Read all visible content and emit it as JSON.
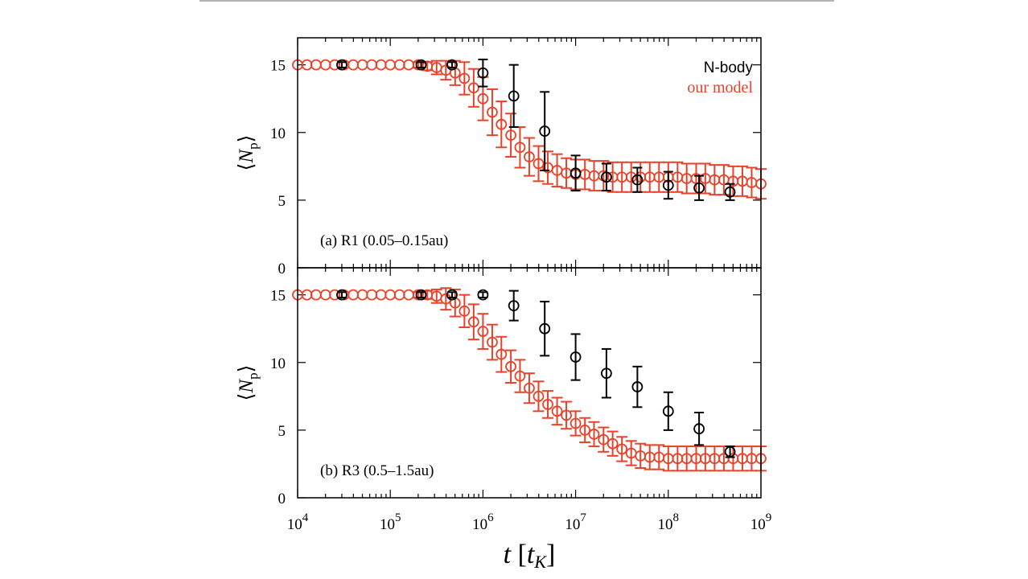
{
  "colors": {
    "nbody": "#000000",
    "model": "#e8432a",
    "frame": "#000000",
    "topline": "#9a9a9a"
  },
  "legend": {
    "nbody_label": "N-body",
    "model_label": "our model"
  },
  "xaxis": {
    "label_var": "t",
    "label_unit_open": "[",
    "label_unit_var": "t",
    "label_unit_sub": "K",
    "label_unit_close": "]",
    "ticks": [
      {
        "base": "10",
        "exp": "4"
      },
      {
        "base": "10",
        "exp": "5"
      },
      {
        "base": "10",
        "exp": "6"
      },
      {
        "base": "10",
        "exp": "7"
      },
      {
        "base": "10",
        "exp": "8"
      },
      {
        "base": "10",
        "exp": "9"
      }
    ]
  },
  "yaxis": {
    "label_open": "⟨",
    "label_var": "N",
    "label_sub": "p",
    "label_close": "⟩",
    "ticks": [
      "0",
      "5",
      "10",
      "15"
    ]
  },
  "chart_data": [
    {
      "type": "scatter",
      "panel_label": "(a) R1 (0.05–0.15au)",
      "xscale": "log",
      "xlim": [
        10000,
        1000000000
      ],
      "ylim": [
        0,
        17
      ],
      "series": [
        {
          "name": "N-body",
          "x": [
            30000,
            215000,
            464000,
            1000000,
            2150000,
            4640000,
            10000000,
            21500000,
            46400000,
            100000000,
            215000000,
            464000000
          ],
          "y": [
            15.0,
            15.0,
            15.0,
            14.4,
            12.7,
            10.1,
            7.0,
            6.7,
            6.5,
            6.1,
            5.9,
            5.6
          ],
          "yerr": [
            0.2,
            0.2,
            0.2,
            1.0,
            2.3,
            2.9,
            1.3,
            1.0,
            0.9,
            1.0,
            0.9,
            0.6
          ]
        },
        {
          "name": "our model",
          "x": [
            10000,
            12600,
            15800,
            20000,
            25100,
            31600,
            39800,
            50100,
            63100,
            79400,
            100000,
            126000,
            158000,
            200000,
            251000,
            316000,
            398000,
            501000,
            631000,
            794000,
            1000000,
            1260000,
            1580000,
            2000000,
            2510000,
            3160000,
            3980000,
            5010000,
            6310000,
            7940000,
            10000000,
            12600000,
            15800000,
            20000000,
            25100000,
            31600000,
            39800000,
            50100000,
            63100000,
            79400000,
            100000000,
            126000000,
            158000000,
            200000000,
            251000000,
            316000000,
            398000000,
            501000000,
            631000000,
            794000000,
            1000000000
          ],
          "y": [
            15.0,
            15.0,
            15.0,
            15.0,
            15.0,
            15.0,
            15.0,
            15.0,
            15.0,
            15.0,
            15.0,
            15.0,
            15.0,
            15.0,
            14.9,
            14.8,
            14.6,
            14.4,
            14.0,
            13.3,
            12.5,
            11.5,
            10.6,
            9.8,
            8.9,
            8.2,
            7.7,
            7.4,
            7.2,
            7.0,
            6.9,
            6.9,
            6.8,
            6.8,
            6.7,
            6.7,
            6.7,
            6.7,
            6.7,
            6.7,
            6.7,
            6.7,
            6.6,
            6.6,
            6.6,
            6.5,
            6.5,
            6.4,
            6.4,
            6.3,
            6.2
          ],
          "yerr": [
            0,
            0,
            0,
            0,
            0,
            0,
            0,
            0,
            0,
            0,
            0,
            0,
            0,
            0.2,
            0.3,
            0.5,
            0.7,
            0.9,
            1.2,
            1.4,
            1.6,
            1.7,
            1.7,
            1.6,
            1.5,
            1.4,
            1.3,
            1.2,
            1.2,
            1.1,
            1.1,
            1.1,
            1.1,
            1.1,
            1.1,
            1.1,
            1.1,
            1.1,
            1.1,
            1.1,
            1.1,
            1.1,
            1.1,
            1.1,
            1.1,
            1.1,
            1.1,
            1.1,
            1.1,
            1.1,
            1.1
          ]
        }
      ]
    },
    {
      "type": "scatter",
      "panel_label": "(b) R3 (0.5–1.5au)",
      "xscale": "log",
      "xlim": [
        10000,
        1000000000
      ],
      "ylim": [
        0,
        17
      ],
      "series": [
        {
          "name": "N-body",
          "x": [
            30000,
            215000,
            464000,
            1000000,
            2150000,
            4640000,
            10000000,
            21500000,
            46400000,
            100000000,
            215000000,
            464000000
          ],
          "y": [
            15.0,
            15.0,
            15.0,
            15.0,
            14.2,
            12.5,
            10.4,
            9.2,
            8.2,
            6.4,
            5.1,
            3.4
          ],
          "yerr": [
            0.2,
            0.2,
            0.2,
            0.2,
            1.1,
            2.0,
            1.7,
            1.8,
            1.5,
            1.4,
            1.2,
            0.4
          ]
        },
        {
          "name": "our model",
          "x": [
            10000,
            12600,
            15800,
            20000,
            25100,
            31600,
            39800,
            50100,
            63100,
            79400,
            100000,
            126000,
            158000,
            200000,
            251000,
            316000,
            398000,
            501000,
            631000,
            794000,
            1000000,
            1260000,
            1580000,
            2000000,
            2510000,
            3160000,
            3980000,
            5010000,
            6310000,
            7940000,
            10000000,
            12600000,
            15800000,
            20000000,
            25100000,
            31600000,
            39800000,
            50100000,
            63100000,
            79400000,
            100000000,
            126000000,
            158000000,
            200000000,
            251000000,
            316000000,
            398000000,
            501000000,
            631000000,
            794000000,
            1000000000
          ],
          "y": [
            15.0,
            15.0,
            15.0,
            15.0,
            15.0,
            15.0,
            15.0,
            15.0,
            15.0,
            15.0,
            15.0,
            15.0,
            15.0,
            15.0,
            15.0,
            14.9,
            14.7,
            14.4,
            13.8,
            13.0,
            12.3,
            11.5,
            10.6,
            9.7,
            9.0,
            8.1,
            7.5,
            6.9,
            6.4,
            6.1,
            5.5,
            5.0,
            4.7,
            4.3,
            4.0,
            3.6,
            3.3,
            3.1,
            3.0,
            3.0,
            2.9,
            2.9,
            2.9,
            2.9,
            2.9,
            2.9,
            2.9,
            2.9,
            2.9,
            2.9,
            2.9
          ],
          "yerr": [
            0,
            0,
            0,
            0,
            0,
            0,
            0,
            0,
            0,
            0,
            0,
            0,
            0,
            0.2,
            0.3,
            0.5,
            0.8,
            1.0,
            1.2,
            1.3,
            1.3,
            1.3,
            1.3,
            1.2,
            1.2,
            1.1,
            1.1,
            1.0,
            1.0,
            1.0,
            0.9,
            0.9,
            0.9,
            0.9,
            0.9,
            0.9,
            0.9,
            0.9,
            0.9,
            0.9,
            0.9,
            0.9,
            0.9,
            0.9,
            0.9,
            0.9,
            0.9,
            0.9,
            0.9,
            0.9,
            0.9
          ]
        }
      ]
    }
  ]
}
